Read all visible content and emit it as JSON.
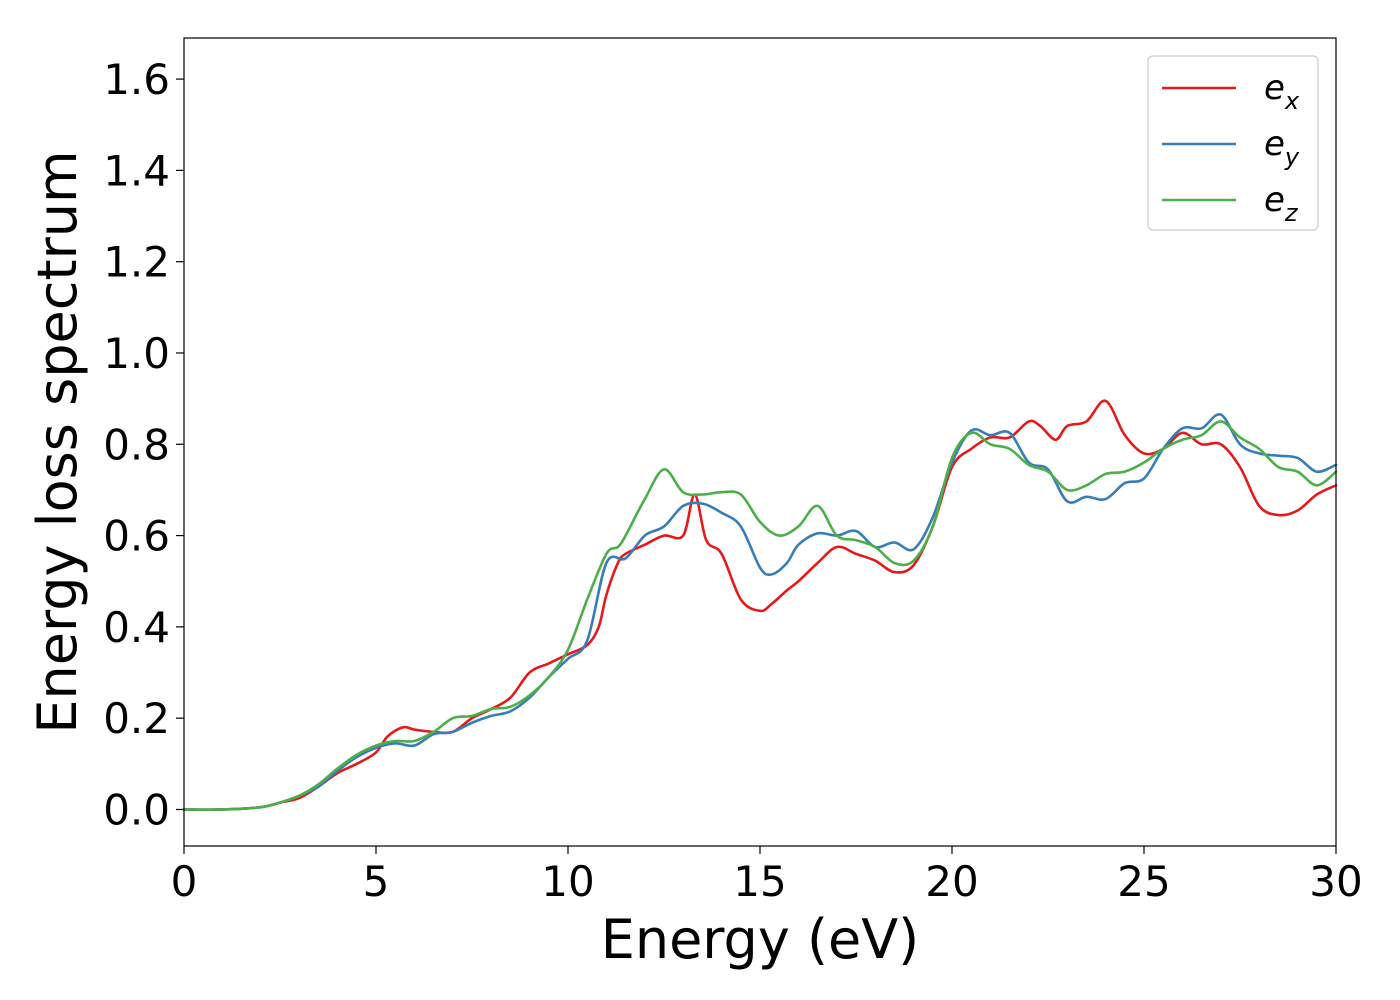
{
  "chart_data": {
    "type": "line",
    "title": "",
    "xlabel": "Energy (eV)",
    "ylabel": "Energy loss spectrum",
    "xlim": [
      0,
      30
    ],
    "ylim": [
      -0.08,
      1.69
    ],
    "xticks": [
      0,
      5,
      10,
      15,
      20,
      25,
      30
    ],
    "yticks": [
      0.0,
      0.2,
      0.4,
      0.6,
      0.8,
      1.0,
      1.2,
      1.4,
      1.6
    ],
    "grid": false,
    "legend_position": "top-right",
    "series": [
      {
        "name": "e",
        "subscript": "x",
        "color": "#e41a1c",
        "x": [
          0,
          1,
          2,
          2.5,
          3,
          3.5,
          4,
          4.5,
          5,
          5.3,
          5.7,
          6,
          6.5,
          7,
          7.5,
          8,
          8.5,
          9,
          9.5,
          10,
          10.5,
          10.8,
          11,
          11.3,
          11.5,
          12,
          12.5,
          13,
          13.3,
          13.6,
          14,
          14.5,
          15,
          15.3,
          15.7,
          16,
          16.5,
          17,
          17.5,
          18,
          18.5,
          19,
          19.5,
          20,
          20.5,
          21,
          21.5,
          22,
          22.3,
          22.7,
          23,
          23.5,
          24,
          24.5,
          25,
          25.5,
          26,
          26.5,
          27,
          27.5,
          28,
          28.5,
          29,
          29.5,
          30
        ],
        "y": [
          0.0,
          0.0,
          0.005,
          0.015,
          0.025,
          0.05,
          0.08,
          0.1,
          0.125,
          0.16,
          0.18,
          0.175,
          0.17,
          0.17,
          0.2,
          0.22,
          0.245,
          0.3,
          0.32,
          0.34,
          0.36,
          0.4,
          0.47,
          0.54,
          0.56,
          0.58,
          0.6,
          0.6,
          0.69,
          0.59,
          0.56,
          0.46,
          0.435,
          0.45,
          0.48,
          0.5,
          0.54,
          0.575,
          0.56,
          0.545,
          0.52,
          0.535,
          0.62,
          0.75,
          0.79,
          0.815,
          0.815,
          0.85,
          0.84,
          0.81,
          0.84,
          0.85,
          0.895,
          0.82,
          0.78,
          0.79,
          0.825,
          0.8,
          0.8,
          0.75,
          0.665,
          0.645,
          0.655,
          0.69,
          0.71
        ]
      },
      {
        "name": "e",
        "subscript": "y",
        "color": "#377eb8",
        "x": [
          0,
          1,
          2,
          2.5,
          3,
          3.5,
          4,
          4.5,
          5,
          5.5,
          6,
          6.5,
          7,
          7.5,
          8,
          8.5,
          9,
          9.5,
          10,
          10.5,
          11,
          11.5,
          12,
          12.5,
          13,
          13.5,
          14,
          14.5,
          15,
          15.3,
          15.7,
          16,
          16.5,
          17,
          17.5,
          18,
          18.5,
          19,
          19.5,
          20,
          20.5,
          21,
          21.5,
          22,
          22.5,
          23,
          23.5,
          24,
          24.5,
          25,
          25.5,
          26,
          26.5,
          27,
          27.5,
          28,
          28.5,
          29,
          29.5,
          30
        ],
        "y": [
          0.0,
          0.0,
          0.005,
          0.015,
          0.03,
          0.05,
          0.085,
          0.115,
          0.135,
          0.145,
          0.14,
          0.165,
          0.17,
          0.19,
          0.205,
          0.215,
          0.245,
          0.29,
          0.33,
          0.37,
          0.54,
          0.55,
          0.6,
          0.62,
          0.665,
          0.67,
          0.65,
          0.62,
          0.53,
          0.515,
          0.54,
          0.58,
          0.605,
          0.6,
          0.61,
          0.575,
          0.585,
          0.57,
          0.64,
          0.76,
          0.83,
          0.82,
          0.825,
          0.76,
          0.745,
          0.675,
          0.685,
          0.68,
          0.715,
          0.725,
          0.79,
          0.835,
          0.835,
          0.865,
          0.8,
          0.78,
          0.775,
          0.77,
          0.74,
          0.755
        ]
      },
      {
        "name": "e",
        "subscript": "z",
        "color": "#4daf4a",
        "x": [
          0,
          1,
          2,
          2.5,
          3,
          3.5,
          4,
          4.5,
          5,
          5.5,
          6,
          6.5,
          7,
          7.5,
          8,
          8.5,
          9,
          9.5,
          10,
          10.5,
          11,
          11.3,
          11.5,
          12,
          12.5,
          13,
          13.5,
          14,
          14.5,
          15,
          15.5,
          16,
          16.5,
          17,
          17.5,
          18,
          18.5,
          19,
          19.5,
          20,
          20.5,
          21,
          21.5,
          22,
          22.5,
          23,
          23.5,
          24,
          24.5,
          25,
          25.5,
          26,
          26.5,
          27,
          27.5,
          28,
          28.5,
          29,
          29.5,
          30
        ],
        "y": [
          0.0,
          0.0,
          0.005,
          0.015,
          0.03,
          0.055,
          0.09,
          0.12,
          0.14,
          0.15,
          0.15,
          0.17,
          0.2,
          0.205,
          0.22,
          0.225,
          0.25,
          0.29,
          0.35,
          0.46,
          0.56,
          0.575,
          0.6,
          0.68,
          0.745,
          0.695,
          0.69,
          0.695,
          0.69,
          0.63,
          0.6,
          0.62,
          0.665,
          0.6,
          0.59,
          0.575,
          0.54,
          0.545,
          0.62,
          0.77,
          0.825,
          0.8,
          0.79,
          0.755,
          0.74,
          0.7,
          0.71,
          0.735,
          0.74,
          0.76,
          0.79,
          0.81,
          0.82,
          0.85,
          0.815,
          0.79,
          0.75,
          0.74,
          0.71,
          0.74
        ]
      }
    ]
  }
}
